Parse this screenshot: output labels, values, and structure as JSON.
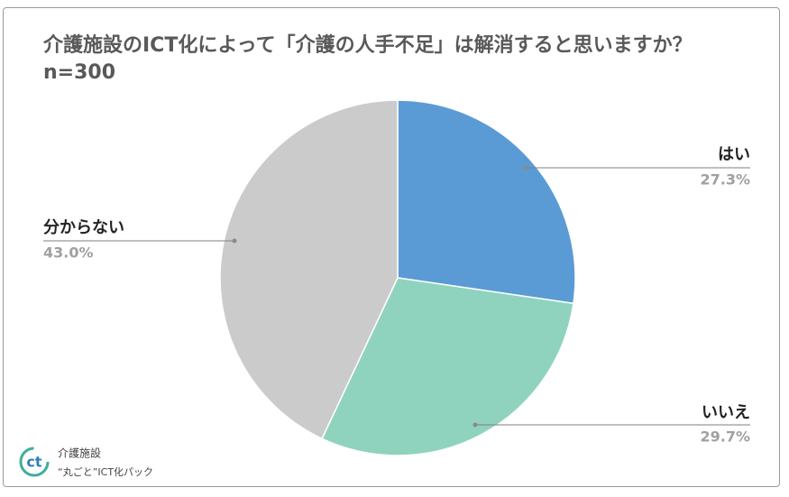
{
  "chart_data": {
    "type": "pie",
    "title": "介護施設のICT化によって「介護の人手不足」は解消すると思いますか？ n=300",
    "categories": [
      "はい",
      "いいえ",
      "分からない"
    ],
    "values": [
      27.3,
      29.7,
      43.0
    ],
    "value_labels": [
      "27.3%",
      "29.7%",
      "43.0%"
    ],
    "colors": [
      "#5b9bd5",
      "#8fd3bf",
      "#cbcbcb"
    ]
  },
  "logo": {
    "line1": "介護施設",
    "line2": "“丸ごと”ICT化パック"
  }
}
